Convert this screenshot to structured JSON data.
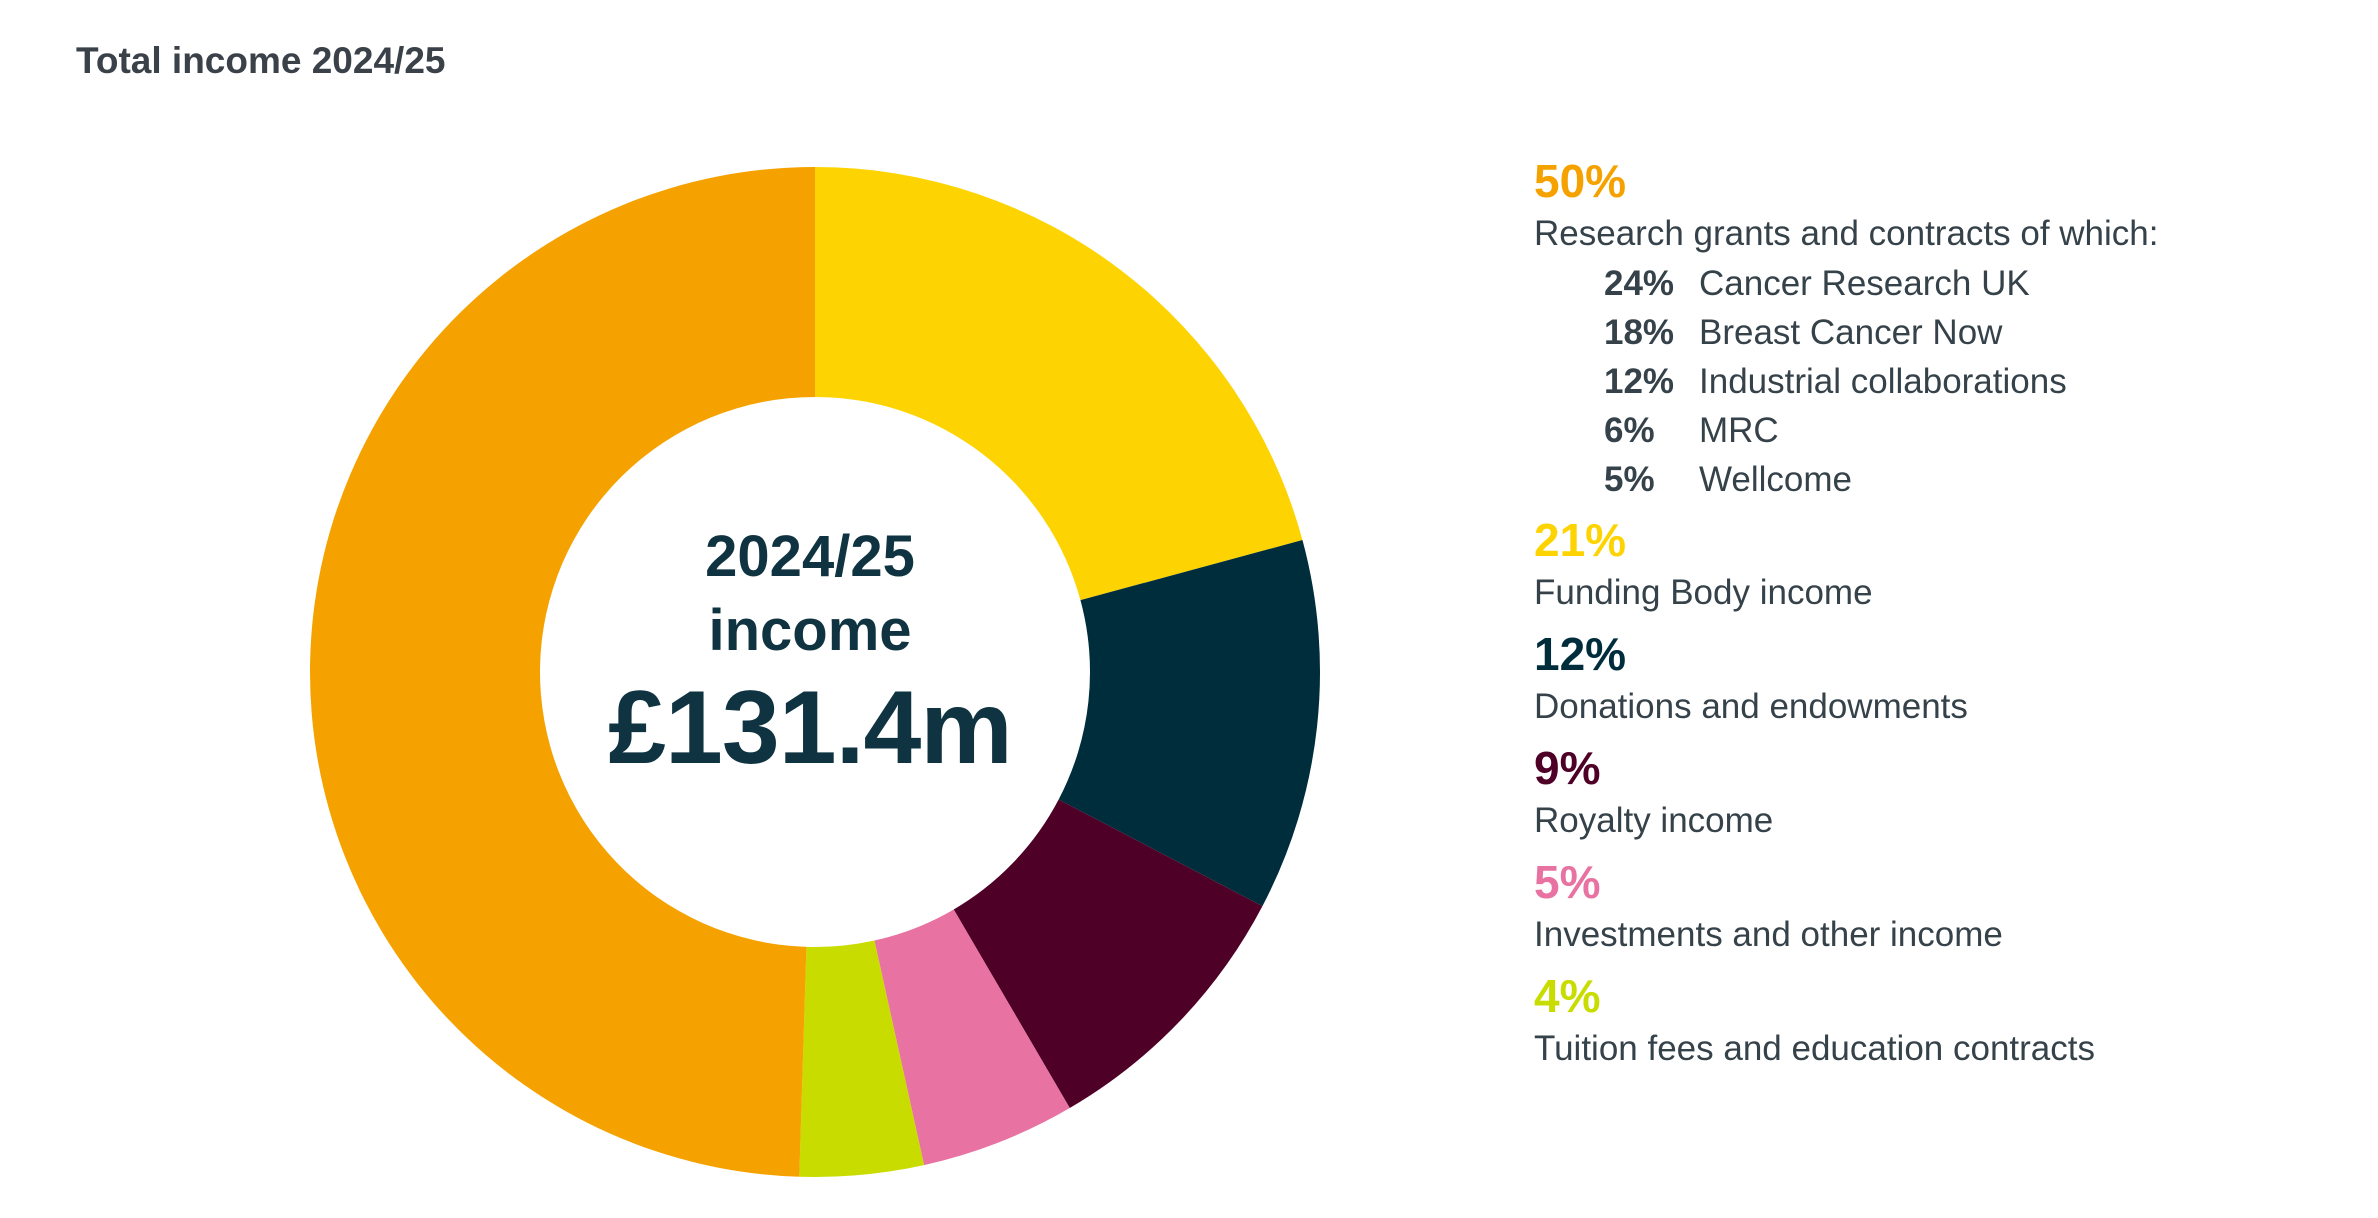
{
  "title": "Total income 2024/25",
  "center": {
    "line1": "2024/25",
    "line2": "income",
    "amount": "£131.4m"
  },
  "legend": [
    {
      "pct": "50%",
      "label": "Research grants and contracts of which:",
      "color": "#f5a200",
      "sub": [
        {
          "pct": "24%",
          "label": "Cancer Research UK"
        },
        {
          "pct": "18%",
          "label": "Breast Cancer Now"
        },
        {
          "pct": "12%",
          "label": "Industrial collaborations"
        },
        {
          "pct": "6%",
          "label": "MRC"
        },
        {
          "pct": "5%",
          "label": "Wellcome"
        }
      ]
    },
    {
      "pct": "21%",
      "label": "Funding Body income",
      "color": "#fdd402"
    },
    {
      "pct": "12%",
      "label": "Donations and endowments",
      "color": "#002d3c"
    },
    {
      "pct": "9%",
      "label": "Royalty income",
      "color": "#4f0027"
    },
    {
      "pct": "5%",
      "label": "Investments and other income",
      "color": "#e872a1"
    },
    {
      "pct": "4%",
      "label": "Tuition fees and education contracts",
      "color": "#c8dc00"
    }
  ],
  "chart_data": {
    "type": "pie",
    "donut": true,
    "categories": [
      "Research grants and contracts",
      "Funding Body income",
      "Donations and endowments",
      "Royalty income",
      "Investments and other income",
      "Tuition fees and education contracts"
    ],
    "values": [
      50,
      21,
      12,
      9,
      5,
      4
    ],
    "colors": [
      "#f5a200",
      "#fdd402",
      "#002d3c",
      "#4f0027",
      "#e872a1",
      "#c8dc00"
    ],
    "slice_order_clockwise_from_top": [
      "Funding Body income",
      "Donations and endowments",
      "Royalty income",
      "Investments and other income",
      "Tuition fees and education contracts",
      "Research grants and contracts"
    ],
    "title": "Total income 2024/25",
    "unit": "%"
  }
}
